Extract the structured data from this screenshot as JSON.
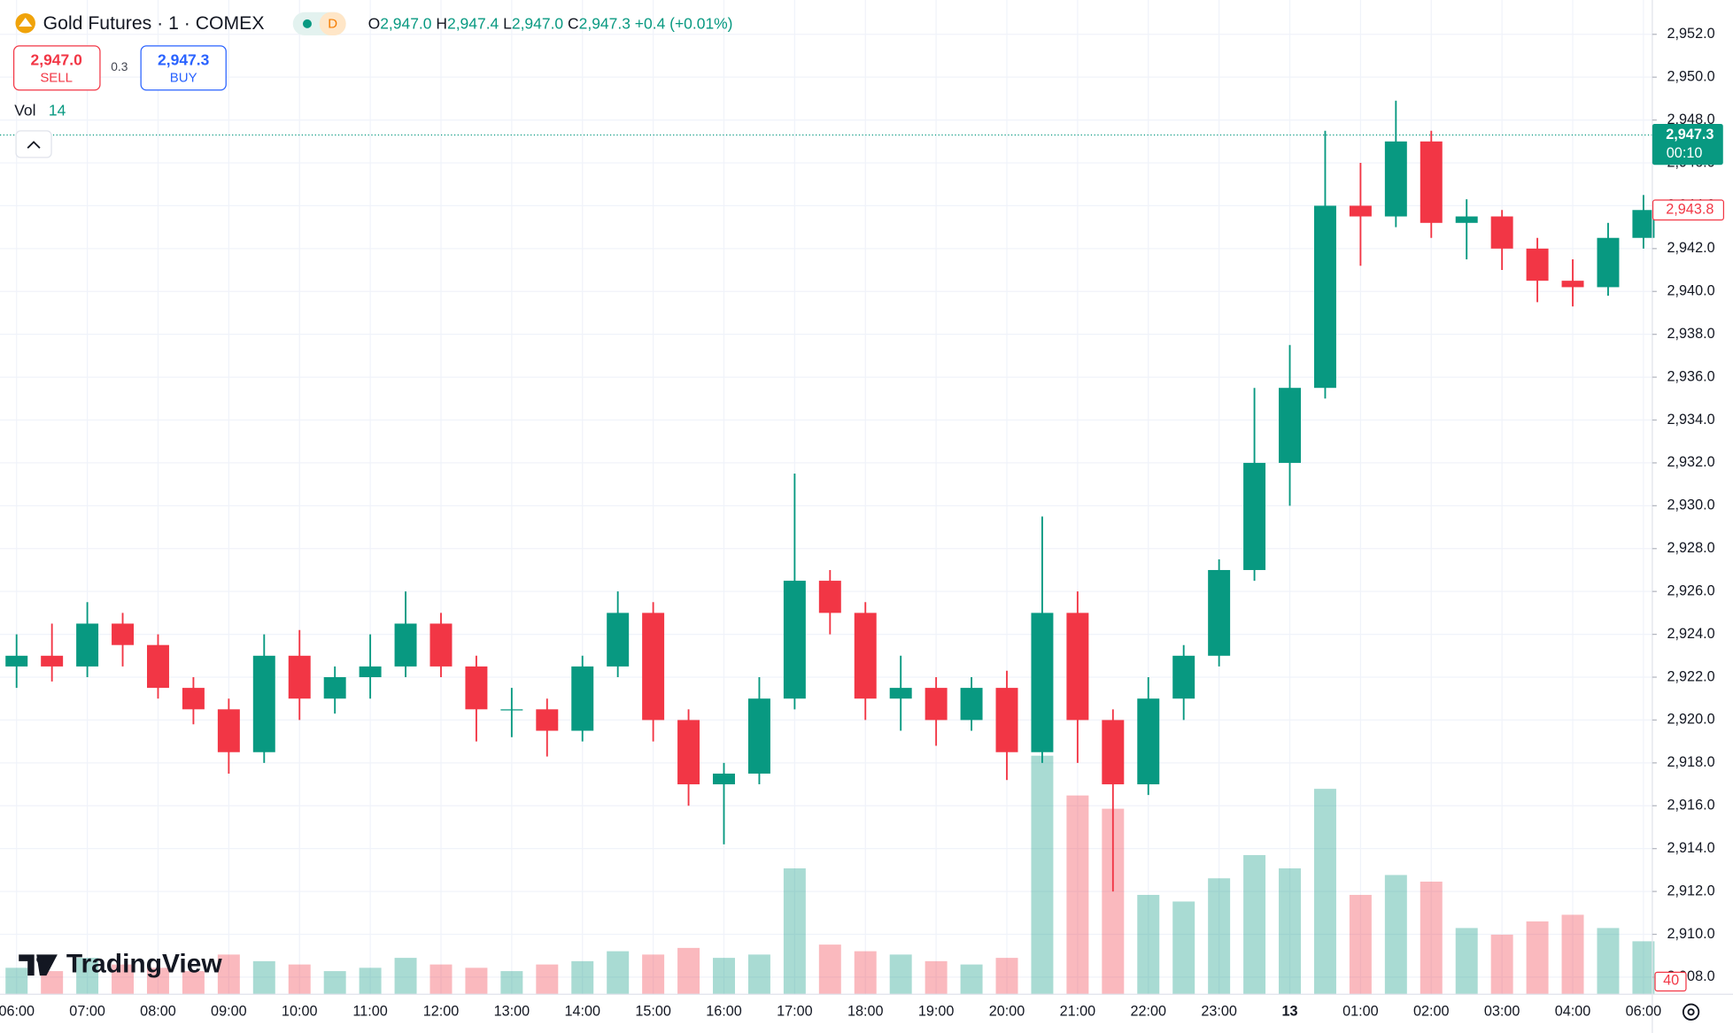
{
  "header": {
    "title": "Gold Futures · 1 · COMEX",
    "interval_badge": "D",
    "ohlc": [
      {
        "key": "O",
        "value": "2,947.0"
      },
      {
        "key": "H",
        "value": "2,947.4"
      },
      {
        "key": "L",
        "value": "2,947.0"
      },
      {
        "key": "C",
        "value": "2,947.3"
      }
    ],
    "change": "+0.4 (+0.01%)",
    "sell": {
      "price": "2,947.0",
      "label": "SELL"
    },
    "spread": "0.3",
    "buy": {
      "price": "2,947.3",
      "label": "BUY"
    },
    "volume_legend": {
      "name": "Vol",
      "value": "14"
    },
    "logo": "TradingView"
  },
  "chart_data": {
    "type": "candlestick",
    "up_color": "#089981",
    "down_color": "#f23645",
    "categories": [
      "06:00",
      null,
      "07:00",
      null,
      "08:00",
      null,
      "09:00",
      null,
      "10:00",
      null,
      "11:00",
      null,
      "12:00",
      null,
      "13:00",
      null,
      "14:00",
      null,
      "15:00",
      null,
      "16:00",
      null,
      "17:00",
      null,
      "18:00",
      null,
      "19:00",
      null,
      "20:00",
      null,
      "21:00",
      null,
      "22:00",
      null,
      "23:00",
      null,
      "13",
      null,
      "01:00",
      null,
      "02:00",
      null,
      "03:00",
      null,
      "04:00",
      null,
      "06:00"
    ],
    "open": [
      2922.5,
      2923,
      2922.5,
      2924.5,
      2923.5,
      2921.5,
      2920.5,
      2918.5,
      2923,
      2921,
      2922,
      2922.5,
      2924.5,
      2922.5,
      2920.5,
      2920.5,
      2919.5,
      2922.5,
      2925,
      2920,
      2917,
      2917.5,
      2921,
      2926.5,
      2925,
      2921,
      2921.5,
      2920,
      2921.5,
      2918.5,
      2925,
      2920,
      2917,
      2921,
      2923,
      2927,
      2932,
      2935.5,
      2944,
      2943.5,
      2947,
      2943.2,
      2943.5,
      2942,
      2940.5,
      2940.2,
      2942.5
    ],
    "high": [
      2924,
      2924.5,
      2925.5,
      2925,
      2924,
      2922,
      2921,
      2924,
      2924.2,
      2922.5,
      2924,
      2926,
      2925,
      2923,
      2921.5,
      2921,
      2923,
      2926,
      2925.5,
      2920.5,
      2918,
      2922,
      2931.5,
      2927,
      2925.5,
      2923,
      2922,
      2922,
      2922.3,
      2929.5,
      2926,
      2920.5,
      2922,
      2923.5,
      2927.5,
      2935.5,
      2937.5,
      2947.5,
      2946,
      2948.9,
      2947.5,
      2944.3,
      2943.8,
      2942.5,
      2941.5,
      2943.2,
      2944.5
    ],
    "low": [
      2921.5,
      2921.8,
      2922,
      2922.5,
      2921,
      2919.8,
      2917.5,
      2918,
      2920,
      2920.3,
      2921,
      2922,
      2922,
      2919,
      2919.2,
      2918.3,
      2919,
      2922,
      2919,
      2916,
      2914.2,
      2917,
      2920.5,
      2924,
      2920,
      2919.5,
      2918.8,
      2919.5,
      2917.2,
      2918,
      2918,
      2912,
      2916.5,
      2920,
      2922.5,
      2926.5,
      2930,
      2935,
      2941.2,
      2943,
      2942.5,
      2941.5,
      2941,
      2939.5,
      2939.3,
      2939.8,
      2942
    ],
    "close": [
      2923,
      2922.5,
      2924.5,
      2923.5,
      2921.5,
      2920.5,
      2918.5,
      2923,
      2921,
      2922,
      2922.5,
      2924.5,
      2922.5,
      2920.5,
      2920.5,
      2919.5,
      2922.5,
      2925,
      2920,
      2917,
      2917.5,
      2921,
      2926.5,
      2925,
      2921,
      2921.5,
      2920,
      2921.5,
      2918.5,
      2925,
      2920,
      2917,
      2921,
      2923,
      2927,
      2932,
      2935.5,
      2944,
      2943.5,
      2947,
      2943.2,
      2943.5,
      2942,
      2940.5,
      2940.2,
      2942.5,
      2943.8
    ],
    "volume": [
      80,
      70,
      110,
      90,
      80,
      70,
      120,
      100,
      90,
      70,
      80,
      110,
      90,
      80,
      70,
      90,
      100,
      130,
      120,
      140,
      110,
      120,
      380,
      150,
      130,
      120,
      100,
      90,
      110,
      720,
      600,
      560,
      300,
      280,
      350,
      420,
      380,
      620,
      300,
      360,
      340,
      200,
      180,
      220,
      240,
      200,
      160
    ],
    "ylim": [
      2907.2,
      2953.6
    ],
    "yticks": [
      {
        "value": 2908,
        "label": "2,908.0"
      },
      {
        "value": 2910,
        "label": "2,910.0"
      },
      {
        "value": 2912,
        "label": "2,912.0"
      },
      {
        "value": 2914,
        "label": "2,914.0"
      },
      {
        "value": 2916,
        "label": "2,916.0"
      },
      {
        "value": 2918,
        "label": "2,918.0"
      },
      {
        "value": 2920,
        "label": "2,920.0"
      },
      {
        "value": 2922,
        "label": "2,922.0"
      },
      {
        "value": 2924,
        "label": "2,924.0"
      },
      {
        "value": 2926,
        "label": "2,926.0"
      },
      {
        "value": 2928,
        "label": "2,928.0"
      },
      {
        "value": 2930,
        "label": "2,930.0"
      },
      {
        "value": 2932,
        "label": "2,932.0"
      },
      {
        "value": 2934,
        "label": "2,934.0"
      },
      {
        "value": 2936,
        "label": "2,936.0"
      },
      {
        "value": 2938,
        "label": "2,938.0"
      },
      {
        "value": 2940,
        "label": "2,940.0"
      },
      {
        "value": 2942,
        "label": "2,942.0"
      },
      {
        "value": 2944,
        "label": "2,944.0"
      },
      {
        "value": 2946,
        "label": "2,946.0"
      },
      {
        "value": 2948,
        "label": "2,948.0"
      },
      {
        "value": 2950,
        "label": "2,950.0"
      },
      {
        "value": 2952,
        "label": "2,952.0"
      }
    ],
    "y2lim": [
      0,
      3000
    ],
    "grid": true,
    "price_tags": [
      {
        "value": 2947.3,
        "label": "2,947.3",
        "sub": "00:10",
        "color": "#089981",
        "style": "filled"
      },
      {
        "value": 2943.8,
        "label": "2,943.8",
        "color": "#f23645",
        "style": "outline"
      }
    ],
    "volume_tag": {
      "value": 40,
      "color": "#f23645"
    }
  }
}
